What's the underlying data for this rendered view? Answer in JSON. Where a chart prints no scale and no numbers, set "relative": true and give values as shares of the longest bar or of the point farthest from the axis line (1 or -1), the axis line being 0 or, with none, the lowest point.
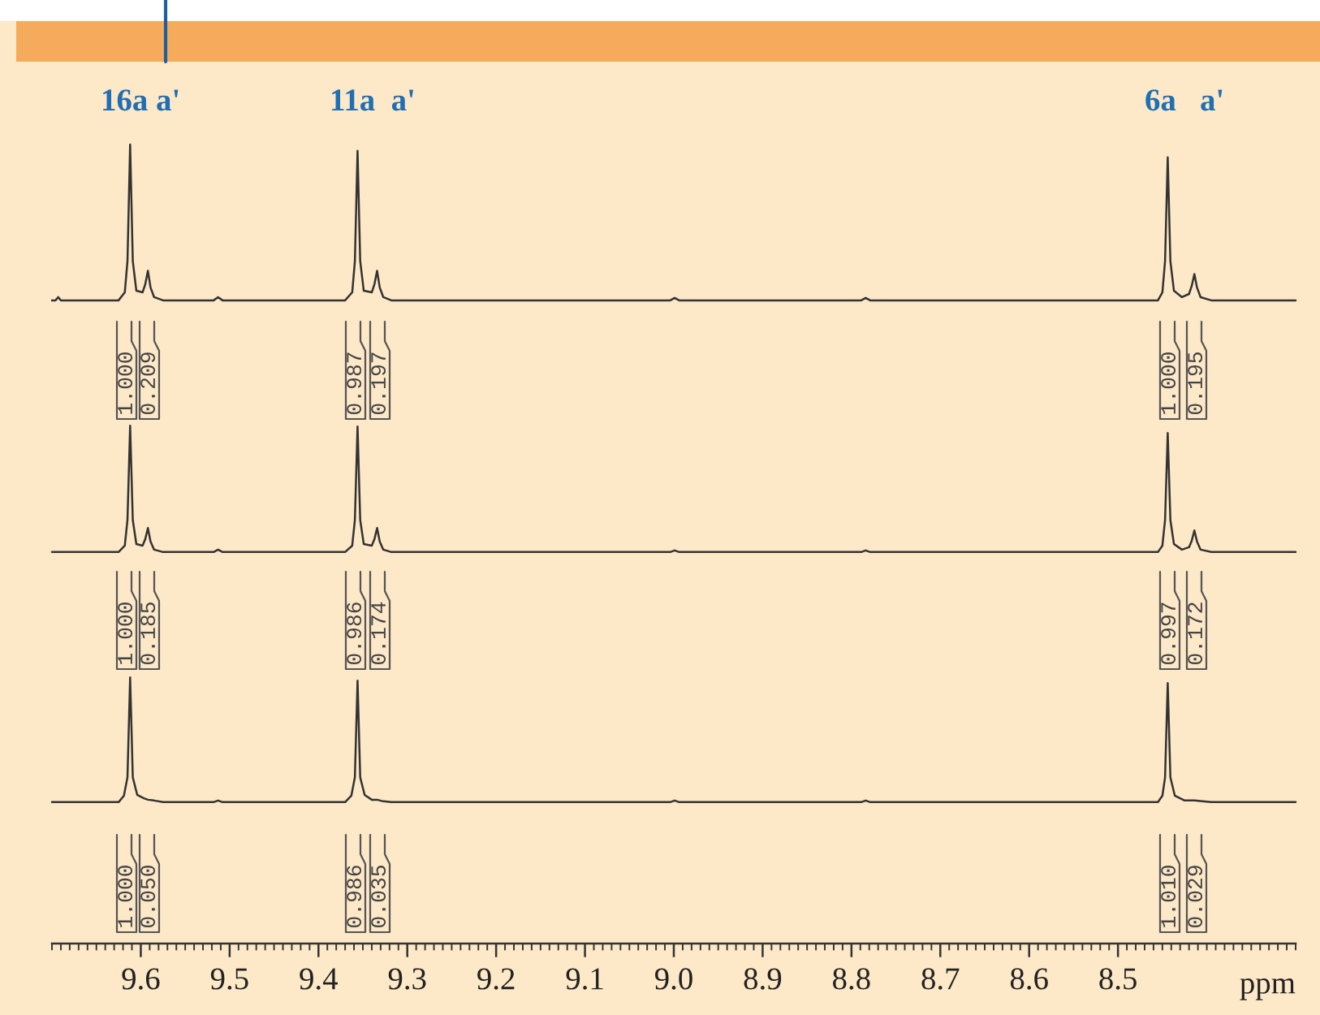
{
  "chart_data": {
    "type": "line",
    "relative": true,
    "xlim": [
      9.7,
      8.3
    ],
    "xlabel": "ppm",
    "xticks": [
      9.6,
      9.5,
      9.4,
      9.3,
      9.2,
      9.1,
      {
        "value": 9,
        "label": "9.0"
      },
      8.9,
      8.8,
      8.7,
      8.6,
      8.5
    ],
    "series": [
      {
        "color": "#333333",
        "x": [
          9.7,
          9.696,
          9.693,
          9.69,
          9.625,
          9.618,
          9.615,
          9.612,
          9.609,
          9.605,
          9.598,
          9.595,
          9.592,
          9.589,
          9.585,
          9.575,
          9.518,
          9.513,
          9.508,
          9.37,
          9.362,
          9.359,
          9.356,
          9.353,
          9.349,
          9.34,
          9.337,
          9.334,
          9.331,
          9.327,
          9.318,
          9.004,
          8.999,
          8.994,
          8.789,
          8.784,
          8.779,
          8.455,
          8.45,
          8.447,
          8.444,
          8.441,
          8.437,
          8.428,
          8.42,
          8.417,
          8.414,
          8.411,
          8.407,
          8.395,
          8.3
        ],
        "values": [
          0.805,
          0.805,
          0.809,
          0.805,
          0.805,
          0.815,
          0.854,
          1.0,
          0.854,
          0.817,
          0.815,
          0.825,
          0.842,
          0.821,
          0.809,
          0.805,
          0.805,
          0.809,
          0.805,
          0.805,
          0.815,
          0.854,
          0.992,
          0.854,
          0.817,
          0.815,
          0.825,
          0.842,
          0.821,
          0.809,
          0.805,
          0.805,
          0.808,
          0.805,
          0.805,
          0.808,
          0.805,
          0.805,
          0.815,
          0.854,
          0.984,
          0.854,
          0.817,
          0.809,
          0.813,
          0.823,
          0.838,
          0.821,
          0.809,
          0.805,
          0.805
        ]
      },
      {
        "color": "#333333",
        "x": [
          9.7,
          9.625,
          9.618,
          9.615,
          9.612,
          9.609,
          9.605,
          9.598,
          9.595,
          9.592,
          9.589,
          9.585,
          9.575,
          9.518,
          9.513,
          9.508,
          9.37,
          9.362,
          9.359,
          9.356,
          9.353,
          9.349,
          9.34,
          9.337,
          9.334,
          9.331,
          9.327,
          9.318,
          9.004,
          8.999,
          8.994,
          8.789,
          8.784,
          8.779,
          8.455,
          8.45,
          8.447,
          8.444,
          8.441,
          8.437,
          8.428,
          8.42,
          8.417,
          8.414,
          8.411,
          8.407,
          8.395,
          8.3
        ],
        "values": [
          0.49,
          0.49,
          0.498,
          0.53,
          0.648,
          0.53,
          0.5,
          0.498,
          0.506,
          0.52,
          0.503,
          0.493,
          0.49,
          0.49,
          0.493,
          0.49,
          0.49,
          0.498,
          0.53,
          0.647,
          0.53,
          0.5,
          0.498,
          0.506,
          0.52,
          0.503,
          0.493,
          0.49,
          0.49,
          0.492,
          0.49,
          0.49,
          0.492,
          0.49,
          0.49,
          0.498,
          0.53,
          0.639,
          0.53,
          0.5,
          0.493,
          0.496,
          0.504,
          0.517,
          0.503,
          0.493,
          0.49,
          0.49
        ]
      },
      {
        "color": "#333333",
        "x": [
          9.7,
          9.625,
          9.619,
          9.615,
          9.612,
          9.609,
          9.604,
          9.597,
          9.592,
          9.585,
          9.575,
          9.518,
          9.513,
          9.508,
          9.37,
          9.363,
          9.359,
          9.356,
          9.353,
          9.348,
          9.34,
          9.334,
          9.327,
          9.318,
          9.004,
          8.999,
          8.994,
          8.789,
          8.784,
          8.779,
          8.455,
          8.45,
          8.447,
          8.444,
          8.441,
          8.436,
          8.425,
          8.414,
          8.405,
          8.395,
          8.3
        ],
        "values": [
          0.177,
          0.177,
          0.185,
          0.208,
          0.333,
          0.208,
          0.186,
          0.182,
          0.18,
          0.179,
          0.177,
          0.177,
          0.179,
          0.177,
          0.177,
          0.185,
          0.208,
          0.329,
          0.208,
          0.186,
          0.18,
          0.18,
          0.178,
          0.177,
          0.177,
          0.179,
          0.177,
          0.177,
          0.179,
          0.177,
          0.177,
          0.185,
          0.208,
          0.326,
          0.208,
          0.185,
          0.179,
          0.179,
          0.178,
          0.177,
          0.177
        ]
      }
    ],
    "annotations": [
      "16a a'",
      "11a  a'",
      "6a   a'",
      "1.000",
      "0.209",
      "0.987",
      "0.197",
      "1.000",
      "0.195",
      "1.000",
      "0.185",
      "0.986",
      "0.174",
      "0.997",
      "0.172",
      "1.000",
      "0.050",
      "0.986",
      "0.035",
      "1.010",
      "0.029"
    ]
  }
}
